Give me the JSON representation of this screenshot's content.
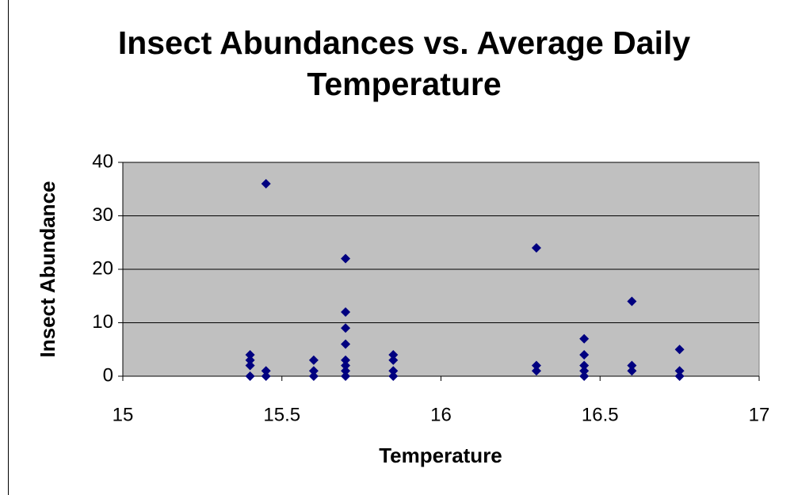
{
  "chart_data": {
    "type": "scatter",
    "title": "Insect Abundances vs. Average Daily Temperature",
    "x_label": "Temperature",
    "y_label": "Insect Abundance",
    "x": [
      15.4,
      15.4,
      15.4,
      15.4,
      15.45,
      15.45,
      15.45,
      15.6,
      15.6,
      15.6,
      15.7,
      15.7,
      15.7,
      15.7,
      15.7,
      15.7,
      15.7,
      15.7,
      15.85,
      15.85,
      15.85,
      15.85,
      16.3,
      16.3,
      16.3,
      16.45,
      16.45,
      16.45,
      16.45,
      16.45,
      16.6,
      16.6,
      16.6,
      16.75,
      16.75,
      16.75
    ],
    "values": [
      4,
      3,
      2,
      0,
      36,
      1,
      0,
      3,
      1,
      0,
      22,
      12,
      9,
      6,
      3,
      2,
      1,
      0,
      4,
      3,
      1,
      0,
      24,
      2,
      1,
      7,
      4,
      2,
      1,
      0,
      14,
      2,
      1,
      5,
      1,
      0
    ],
    "color": "#000080",
    "xlim": [
      15,
      17
    ],
    "xticks": [
      15,
      15.5,
      16,
      16.5,
      17
    ],
    "ylim": [
      0,
      40
    ],
    "yticks": [
      0,
      10,
      20,
      30,
      40
    ],
    "grid": true
  }
}
